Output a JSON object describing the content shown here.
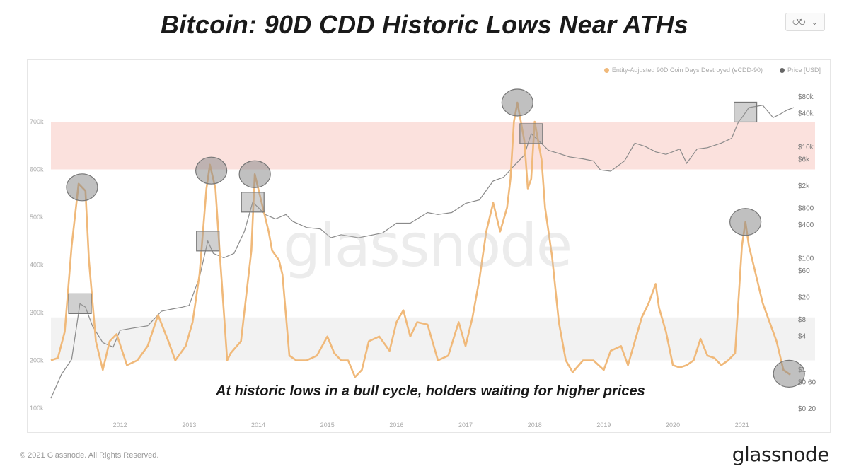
{
  "title": "Bitcoin: 90D CDD Historic Lows Near ATHs",
  "share_button": {
    "icon": "share-icon",
    "chevron": "chevron-down-icon"
  },
  "watermark": "glassnode",
  "annotation": "At historic lows in a bull cycle, holders waiting for higher prices",
  "footer": {
    "copyright": "© 2021 Glassnode. All Rights Reserved.",
    "logo": "glassnode"
  },
  "colors": {
    "cdd": "#f0b97a",
    "price": "#8a8a8a",
    "high_band": "#fbe1dd",
    "low_band": "#f2f2f2",
    "marker": "#999999"
  },
  "chart_data": {
    "type": "line",
    "title": "Bitcoin: 90D CDD Historic Lows Near ATHs",
    "legend": [
      "Entity-Adjusted 90D Coin Days Destroyed (eCDD-90)",
      "Price [USD]"
    ],
    "legend_position": "top-right",
    "x_range": [
      2011.0,
      2021.75
    ],
    "x_ticks": [
      "2012",
      "2013",
      "2014",
      "2015",
      "2016",
      "2017",
      "2018",
      "2019",
      "2020",
      "2021"
    ],
    "left_axis": {
      "ticks": [
        "100k",
        "200k",
        "300k",
        "400k",
        "500k",
        "600k",
        "700k"
      ],
      "range": [
        100000,
        700000
      ]
    },
    "right_axis": {
      "scale": "log",
      "ticks": [
        "$0.20",
        "$0.60",
        "$1",
        "$4",
        "$8",
        "$20",
        "$60",
        "$100",
        "$400",
        "$800",
        "$2k",
        "$6k",
        "$10k",
        "$40k",
        "$80k"
      ],
      "tick_values": [
        0.2,
        0.6,
        1,
        4,
        8,
        20,
        60,
        100,
        400,
        800,
        2000,
        6000,
        10000,
        40000,
        80000
      ]
    },
    "bands": [
      {
        "name": "high-zone",
        "from": 600000,
        "to": 700000
      },
      {
        "name": "low-zone",
        "from": 200000,
        "to": 290000
      }
    ],
    "series": [
      {
        "name": "Entity-Adjusted 90D Coin Days Destroyed (eCDD-90)",
        "axis": "left",
        "x": [
          2011.0,
          2011.1,
          2011.2,
          2011.3,
          2011.4,
          2011.5,
          2011.55,
          2011.65,
          2011.75,
          2011.85,
          2011.95,
          2012.1,
          2012.25,
          2012.4,
          2012.55,
          2012.7,
          2012.8,
          2012.95,
          2013.05,
          2013.15,
          2013.25,
          2013.3,
          2013.38,
          2013.45,
          2013.55,
          2013.6,
          2013.75,
          2013.9,
          2013.95,
          2014.0,
          2014.05,
          2014.15,
          2014.2,
          2014.3,
          2014.35,
          2014.45,
          2014.55,
          2014.7,
          2014.85,
          2015.0,
          2015.1,
          2015.2,
          2015.3,
          2015.4,
          2015.5,
          2015.6,
          2015.75,
          2015.9,
          2016.0,
          2016.1,
          2016.2,
          2016.3,
          2016.45,
          2016.6,
          2016.75,
          2016.9,
          2017.0,
          2017.1,
          2017.2,
          2017.3,
          2017.4,
          2017.5,
          2017.6,
          2017.65,
          2017.7,
          2017.75,
          2017.8,
          2017.85,
          2017.9,
          2017.95,
          2018.0,
          2018.05,
          2018.1,
          2018.15,
          2018.25,
          2018.35,
          2018.45,
          2018.55,
          2018.7,
          2018.85,
          2019.0,
          2019.1,
          2019.25,
          2019.35,
          2019.45,
          2019.55,
          2019.65,
          2019.75,
          2019.8,
          2019.9,
          2020.0,
          2020.1,
          2020.2,
          2020.3,
          2020.4,
          2020.5,
          2020.6,
          2020.7,
          2020.8,
          2020.9,
          2021.0,
          2021.05,
          2021.1,
          2021.2,
          2021.3,
          2021.4,
          2021.5,
          2021.6,
          2021.7
        ],
        "values": [
          200000,
          205000,
          260000,
          440000,
          570000,
          555000,
          410000,
          240000,
          180000,
          240000,
          255000,
          190000,
          200000,
          230000,
          295000,
          240000,
          200000,
          230000,
          280000,
          380000,
          560000,
          610000,
          560000,
          410000,
          200000,
          215000,
          240000,
          430000,
          590000,
          560000,
          530000,
          470000,
          430000,
          410000,
          380000,
          210000,
          200000,
          200000,
          210000,
          250000,
          215000,
          200000,
          200000,
          165000,
          180000,
          240000,
          250000,
          220000,
          280000,
          305000,
          250000,
          280000,
          275000,
          200000,
          210000,
          280000,
          230000,
          290000,
          370000,
          470000,
          530000,
          470000,
          520000,
          580000,
          700000,
          740000,
          700000,
          660000,
          560000,
          580000,
          700000,
          660000,
          620000,
          520000,
          420000,
          280000,
          200000,
          175000,
          200000,
          200000,
          180000,
          220000,
          230000,
          190000,
          240000,
          290000,
          320000,
          360000,
          310000,
          260000,
          190000,
          185000,
          190000,
          200000,
          245000,
          210000,
          205000,
          190000,
          200000,
          215000,
          440000,
          490000,
          440000,
          380000,
          320000,
          280000,
          240000,
          180000,
          170000
        ]
      },
      {
        "name": "Price [USD]",
        "axis": "right",
        "x": [
          2011.0,
          2011.15,
          2011.3,
          2011.42,
          2011.5,
          2011.6,
          2011.75,
          2011.9,
          2012.0,
          2012.2,
          2012.4,
          2012.6,
          2012.75,
          2012.9,
          2013.0,
          2013.15,
          2013.27,
          2013.35,
          2013.5,
          2013.65,
          2013.8,
          2013.92,
          2014.0,
          2014.1,
          2014.25,
          2014.4,
          2014.5,
          2014.7,
          2014.9,
          2015.05,
          2015.2,
          2015.45,
          2015.6,
          2015.8,
          2016.0,
          2016.2,
          2016.45,
          2016.6,
          2016.8,
          2017.0,
          2017.2,
          2017.4,
          2017.55,
          2017.7,
          2017.85,
          2017.95,
          2018.05,
          2018.2,
          2018.35,
          2018.5,
          2018.7,
          2018.85,
          2018.95,
          2019.1,
          2019.3,
          2019.45,
          2019.6,
          2019.75,
          2019.9,
          2020.1,
          2020.2,
          2020.35,
          2020.5,
          2020.7,
          2020.85,
          2020.95,
          2021.0,
          2021.1,
          2021.3,
          2021.45,
          2021.55,
          2021.65,
          2021.75
        ],
        "values": [
          0.3,
          0.8,
          1.5,
          15,
          13,
          6,
          3,
          2.5,
          5,
          5.5,
          6,
          11,
          12,
          13,
          14,
          45,
          200,
          120,
          100,
          120,
          300,
          1000,
          800,
          600,
          500,
          600,
          450,
          350,
          330,
          230,
          260,
          230,
          250,
          280,
          420,
          420,
          650,
          600,
          650,
          950,
          1100,
          2400,
          2800,
          4500,
          7000,
          17000,
          13000,
          8500,
          7500,
          6500,
          6000,
          5500,
          3800,
          3600,
          5500,
          11500,
          10000,
          8000,
          7200,
          9000,
          5000,
          9000,
          9500,
          11500,
          14000,
          28000,
          33000,
          50000,
          55000,
          33000,
          38000,
          45000,
          50000
        ]
      }
    ],
    "cdd_peak_markers": [
      2011.45,
      2013.32,
      2013.95,
      2017.75,
      2021.05,
      2021.68
    ],
    "price_ath_markers": [
      2011.42,
      2013.27,
      2013.92,
      2017.95,
      2021.05
    ]
  }
}
